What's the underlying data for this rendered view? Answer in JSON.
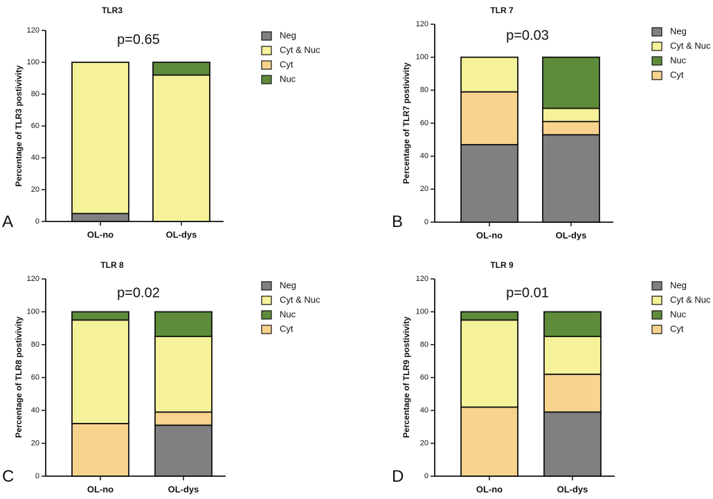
{
  "colors": {
    "Neg": "#808080",
    "Cyt & Nuc": "#f5f29a",
    "Cyt": "#f8d38e",
    "Nuc": "#5e8c3a",
    "axis": "#111111",
    "bar_stroke": "#111111"
  },
  "chart_data": [
    {
      "type": "bar",
      "stacked": true,
      "panel_letter": "A",
      "title": "TLR3",
      "ylabel": "Percentage of TLR3 postivivity",
      "annotation": "p=0.65",
      "categories": [
        "OL-no",
        "OL-dys"
      ],
      "ylim": [
        0,
        120
      ],
      "yticks": [
        0,
        20,
        40,
        60,
        80,
        100,
        120
      ],
      "legend_order": [
        "Neg",
        "Cyt & Nuc",
        "Cyt",
        "Nuc"
      ],
      "series": [
        {
          "name": "Neg",
          "values": [
            5,
            0
          ]
        },
        {
          "name": "Cyt & Nuc",
          "values": [
            95,
            92
          ]
        },
        {
          "name": "Cyt",
          "values": [
            0,
            0
          ]
        },
        {
          "name": "Nuc",
          "values": [
            0,
            8
          ]
        }
      ]
    },
    {
      "type": "bar",
      "stacked": true,
      "panel_letter": "B",
      "title": "TLR 7",
      "ylabel": "Percentage of TLR7 postivivity",
      "annotation": "p=0.03",
      "categories": [
        "OL-no",
        "OL-dys"
      ],
      "ylim": [
        0,
        120
      ],
      "yticks": [
        0,
        20,
        40,
        60,
        80,
        100,
        120
      ],
      "legend_order": [
        "Neg",
        "Cyt & Nuc",
        "Nuc",
        "Cyt"
      ],
      "series": [
        {
          "name": "Neg",
          "values": [
            47,
            53
          ]
        },
        {
          "name": "Cyt",
          "values": [
            32,
            8
          ]
        },
        {
          "name": "Cyt & Nuc",
          "values": [
            21,
            8
          ]
        },
        {
          "name": "Nuc",
          "values": [
            0,
            31
          ]
        }
      ]
    },
    {
      "type": "bar",
      "stacked": true,
      "panel_letter": "C",
      "title": "TLR 8",
      "ylabel": "Percentage of TLR8 postivivity",
      "annotation": "p=0.02",
      "categories": [
        "OL-no",
        "OL-dys"
      ],
      "ylim": [
        0,
        120
      ],
      "yticks": [
        0,
        20,
        40,
        60,
        80,
        100,
        120
      ],
      "legend_order": [
        "Neg",
        "Cyt & Nuc",
        "Nuc",
        "Cyt"
      ],
      "series": [
        {
          "name": "Neg",
          "values": [
            0,
            31
          ]
        },
        {
          "name": "Cyt",
          "values": [
            32,
            8
          ]
        },
        {
          "name": "Cyt & Nuc",
          "values": [
            63,
            46
          ]
        },
        {
          "name": "Nuc",
          "values": [
            5,
            15
          ]
        }
      ]
    },
    {
      "type": "bar",
      "stacked": true,
      "panel_letter": "D",
      "title": "TLR 9",
      "ylabel": "Percentage of TLR9 postivivity",
      "annotation": "p=0.01",
      "categories": [
        "OL-no",
        "OL-dys"
      ],
      "ylim": [
        0,
        120
      ],
      "yticks": [
        0,
        20,
        40,
        60,
        80,
        100,
        120
      ],
      "legend_order": [
        "Neg",
        "Cyt & Nuc",
        "Nuc",
        "Cyt"
      ],
      "series": [
        {
          "name": "Neg",
          "values": [
            0,
            39
          ]
        },
        {
          "name": "Cyt",
          "values": [
            42,
            23
          ]
        },
        {
          "name": "Cyt & Nuc",
          "values": [
            53,
            23
          ]
        },
        {
          "name": "Nuc",
          "values": [
            5,
            15
          ]
        }
      ]
    }
  ]
}
